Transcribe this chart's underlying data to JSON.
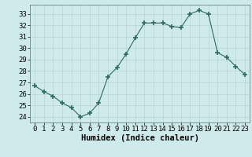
{
  "xlabel": "Humidex (Indice chaleur)",
  "x": [
    0,
    1,
    2,
    3,
    4,
    5,
    6,
    7,
    8,
    9,
    10,
    11,
    12,
    13,
    14,
    15,
    16,
    17,
    18,
    19,
    20,
    21,
    22,
    23
  ],
  "y": [
    26.7,
    26.2,
    25.8,
    25.2,
    24.8,
    24.0,
    24.3,
    25.2,
    27.5,
    28.3,
    29.5,
    30.9,
    32.2,
    32.2,
    32.2,
    31.9,
    31.8,
    33.0,
    33.3,
    33.0,
    29.6,
    29.2,
    28.4,
    27.7
  ],
  "line_color": "#2e6b5e",
  "marker": "+",
  "marker_size": 4,
  "marker_lw": 1.2,
  "bg_color": "#ceeaea",
  "grid_color": "#b8d4d4",
  "ylim": [
    23.5,
    33.8
  ],
  "yticks": [
    24,
    25,
    26,
    27,
    28,
    29,
    30,
    31,
    32,
    33
  ],
  "xlim": [
    -0.5,
    23.5
  ],
  "tick_fontsize": 6.5,
  "label_fontsize": 7.5
}
